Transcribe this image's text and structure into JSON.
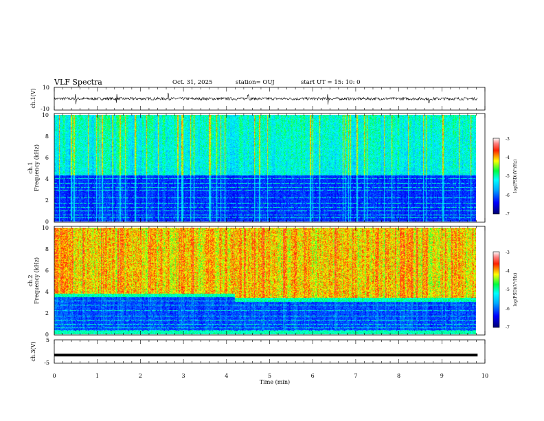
{
  "header": {
    "title": "VLF Spectra",
    "date": "Oct. 31, 2025",
    "station": "station= OUJ",
    "start": "start  UT  =    15: 10: 0"
  },
  "chart_data": [
    {
      "type": "line",
      "id": "ch1-waveform",
      "ylabel": "ch.1(V)",
      "ylim": [
        -10,
        10
      ],
      "yticks": [
        "10",
        "-10"
      ],
      "xlim": [
        0,
        10
      ],
      "baseline": 0,
      "noise": 1.2,
      "spikes": [
        0.5,
        1.45,
        2.65,
        4.5,
        6.35,
        8.7
      ]
    },
    {
      "type": "heatmap",
      "id": "ch1-spectrogram",
      "ylabel": "ch.1",
      "ylabel2": "Frequency  (kHz)",
      "ylim": [
        0,
        10
      ],
      "yticks": [
        "0",
        "2",
        "4",
        "6",
        "8",
        "10"
      ],
      "xlim": [
        0,
        9.83
      ],
      "colorbar": {
        "label": "log(PSD)(V²/Hz)",
        "range": [
          -7,
          -3
        ],
        "ticks": [
          "-3",
          "-4",
          "-5",
          "-6",
          "-7"
        ]
      },
      "profile": "low",
      "lines_khz": [
        0.3,
        0.6,
        1.0,
        1.3,
        1.7,
        2.2,
        2.9,
        3.2,
        3.6,
        4.0,
        4.6,
        5.1,
        5.8,
        6.2,
        6.9,
        8.5
      ]
    },
    {
      "type": "heatmap",
      "id": "ch2-spectrogram",
      "ylabel": "ch.2",
      "ylabel2": "Frequency  (kHz)",
      "ylim": [
        0,
        10
      ],
      "yticks": [
        "0",
        "2",
        "4",
        "6",
        "8",
        "10"
      ],
      "xlim": [
        0,
        9.83
      ],
      "colorbar": {
        "label": "log(PSD)(V²/Hz)",
        "range": [
          -7,
          -3
        ],
        "ticks": [
          "-3",
          "-4",
          "-5",
          "-6",
          "-7"
        ]
      },
      "profile": "high",
      "lines_khz": [
        0.3,
        0.6,
        0.9,
        1.3,
        1.7,
        2.2,
        2.7,
        3.1,
        3.5,
        4.0,
        4.3
      ]
    },
    {
      "type": "line",
      "id": "ch3-waveform",
      "ylabel": "ch.3(V)",
      "ylim": [
        -5,
        5
      ],
      "yticks": [
        "5",
        "-5"
      ],
      "xlim": [
        0,
        9.83
      ],
      "baseline": -1.5
    }
  ],
  "xaxis": {
    "label": "Time  (min)",
    "ticks": [
      "0",
      "1",
      "2",
      "3",
      "4",
      "5",
      "6",
      "7",
      "8",
      "9",
      "10"
    ],
    "range": [
      0,
      10
    ]
  }
}
